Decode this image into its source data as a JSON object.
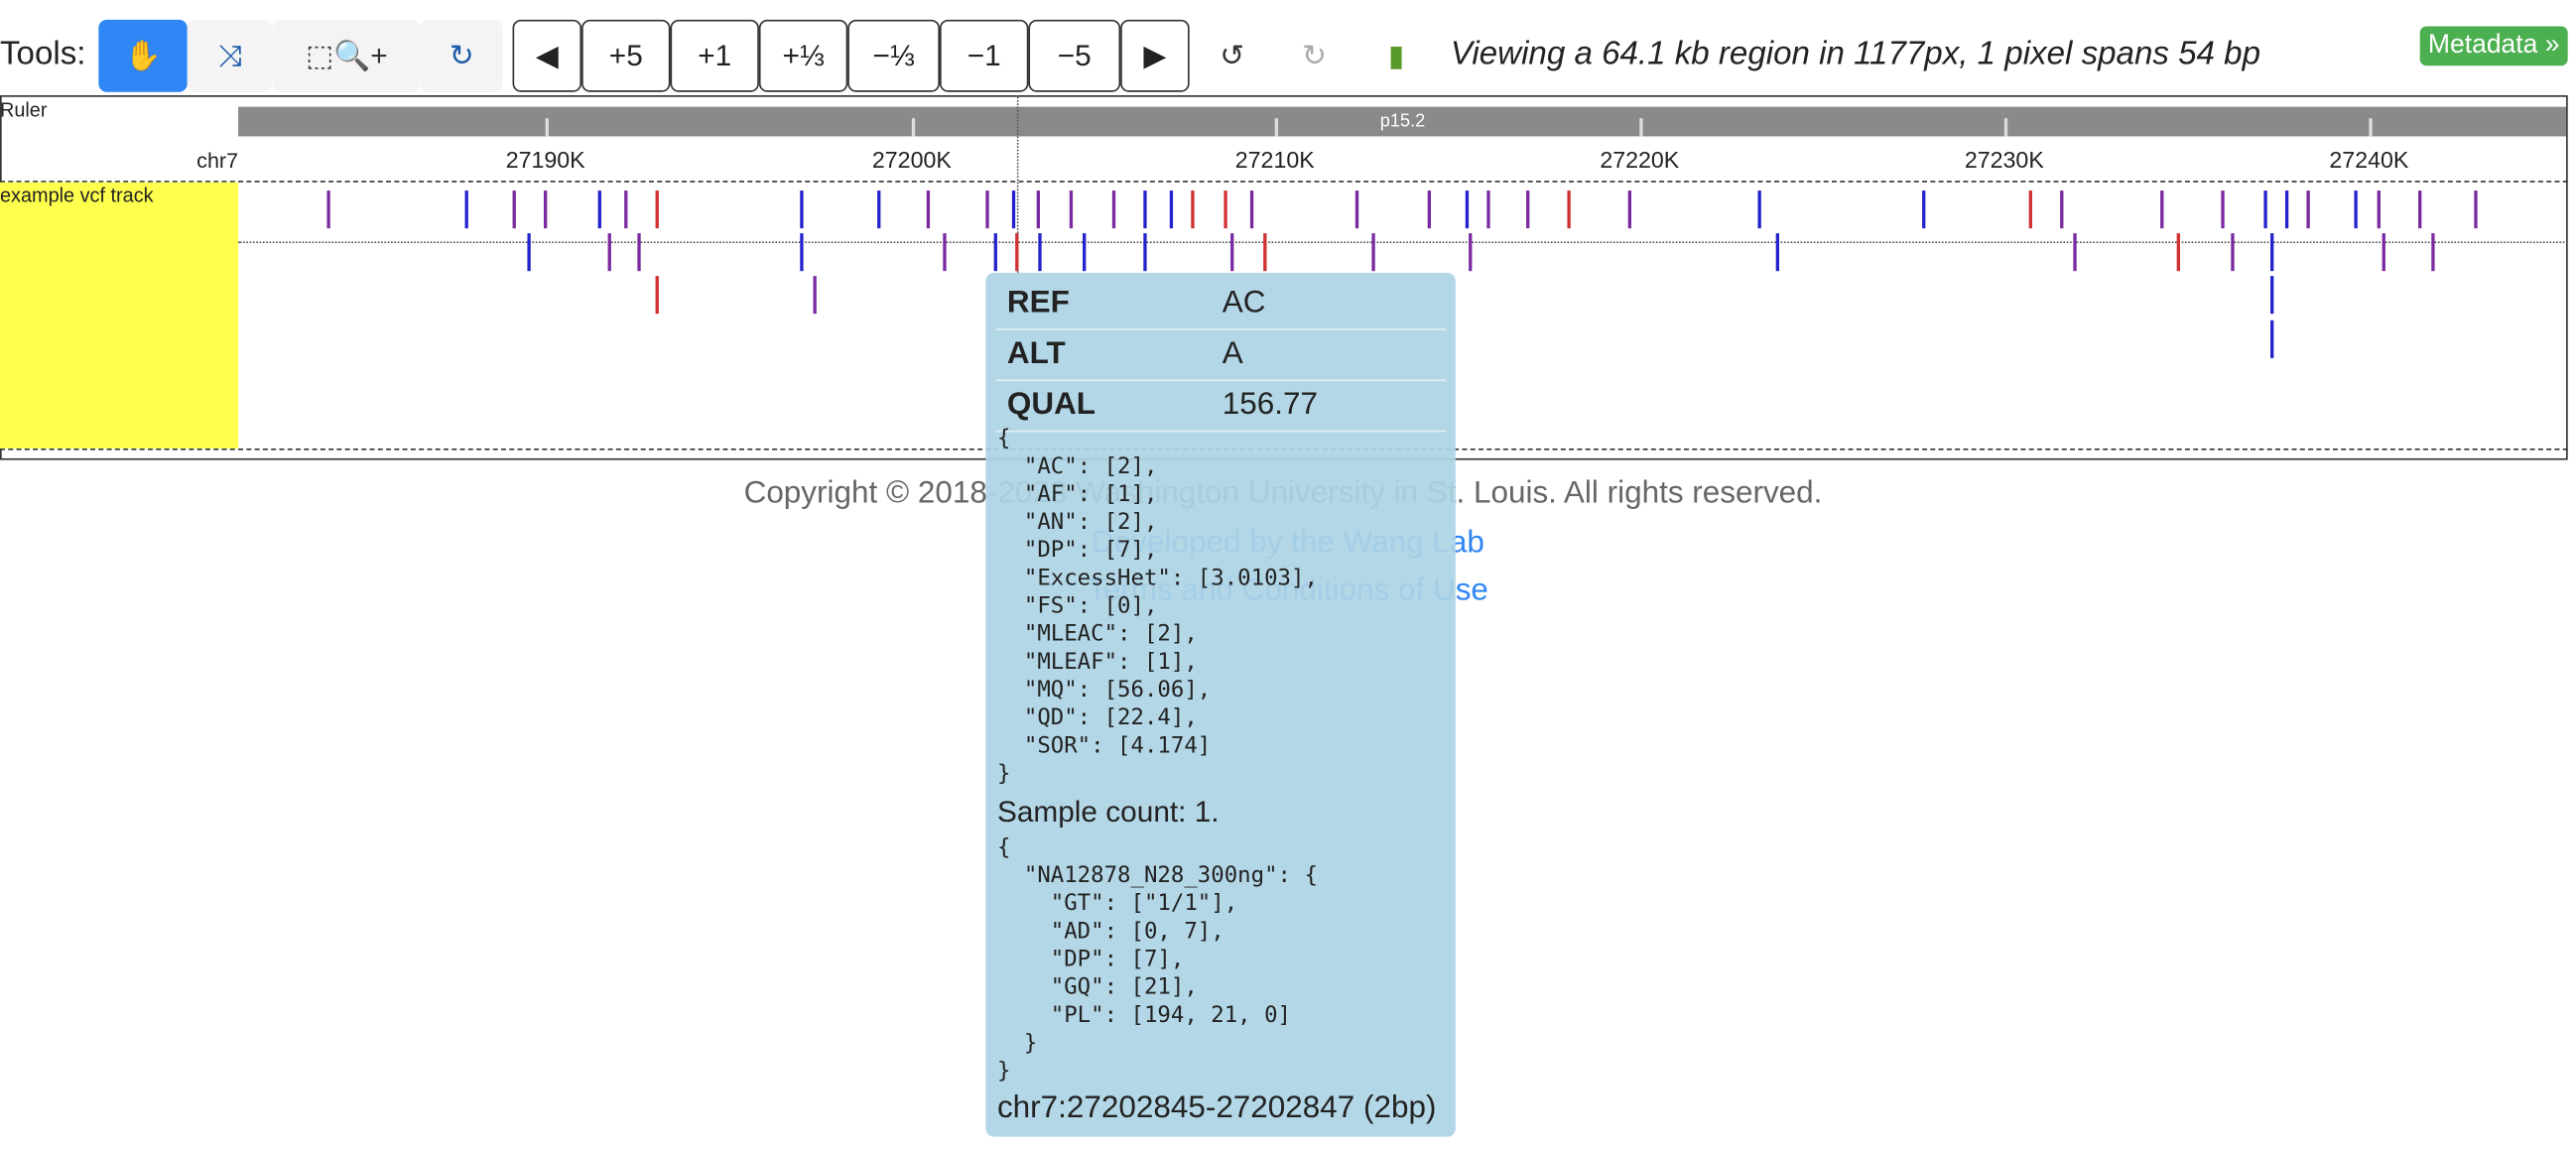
{
  "toolbar": {
    "label": "Tools:",
    "nav_buttons": [
      "◀",
      "+5",
      "+1",
      "+⅓",
      "−⅓",
      "−1",
      "−5",
      "▶"
    ],
    "status": "Viewing a 64.1 kb region in 1177px, 1 pixel spans 54 bp",
    "metadata_button": "Metadata »"
  },
  "ruler": {
    "label": "Ruler",
    "band": "p15.2",
    "chromosome": "chr7",
    "ticks": [
      "27190K",
      "27200K",
      "27210K",
      "27220K",
      "27230K",
      "27240K"
    ]
  },
  "track": {
    "label": "example vcf track"
  },
  "tooltip": {
    "fields": [
      [
        "REF",
        "AC"
      ],
      [
        "ALT",
        "A"
      ],
      [
        "QUAL",
        "156.77"
      ]
    ],
    "info_lines": [
      "{",
      "  \"AC\": [2],",
      "  \"AF\": [1],",
      "  \"AN\": [2],",
      "  \"DP\": [7],",
      "  \"ExcessHet\": [3.0103],",
      "  \"FS\": [0],",
      "  \"MLEAC\": [2],",
      "  \"MLEAF\": [1],",
      "  \"MQ\": [56.06],",
      "  \"QD\": [22.4],",
      "  \"SOR\": [4.174]",
      "}"
    ],
    "sample_count": "Sample count: 1.",
    "sample_lines": [
      "{",
      "  \"NA12878_N28_300ng\": {",
      "    \"GT\": [\"1/1\"],",
      "    \"AD\": [0, 7],",
      "    \"DP\": [7],",
      "    \"GQ\": [21],",
      "    \"PL\": [194, 21, 0]",
      "  }",
      "}"
    ],
    "location": "chr7:27202845-27202847 (2bp)"
  },
  "footer": {
    "copyright": "Copyright © 2018-2023 Washington University in St. Louis. All rights reserved.",
    "developed": "Developed by the Wang Lab",
    "terms": "Terms and Conditions of Use"
  }
}
